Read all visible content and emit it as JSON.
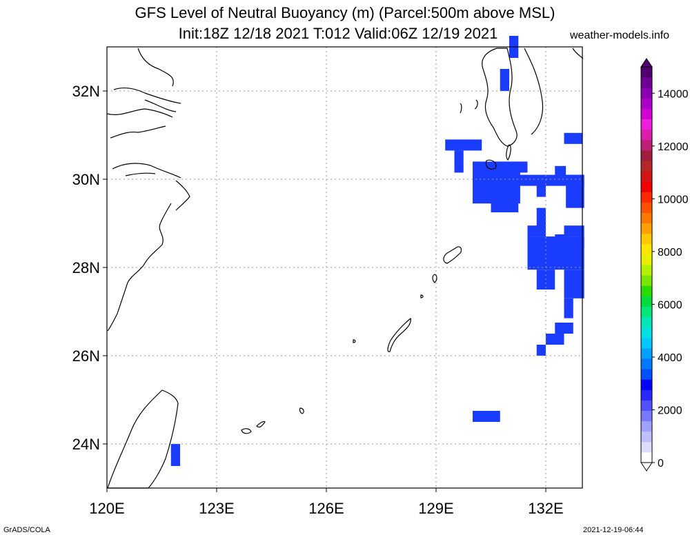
{
  "title": {
    "line1": "GFS Level of Neutral Buoyancy (m) (Parcel:500m above MSL)",
    "line2": "Init:18Z 12/18 2021 T:012 Valid:06Z 12/19 2021"
  },
  "site": "weather-models.info",
  "footer": {
    "left": "GrADS/COLA",
    "right": "2021-12-19-06:44"
  },
  "axes": {
    "lon_range": [
      120,
      133
    ],
    "lat_range": [
      23,
      33
    ],
    "x_ticks": [
      {
        "v": 120,
        "label": "120E"
      },
      {
        "v": 123,
        "label": "123E"
      },
      {
        "v": 126,
        "label": "126E"
      },
      {
        "v": 129,
        "label": "129E"
      },
      {
        "v": 132,
        "label": "132E"
      }
    ],
    "y_ticks": [
      {
        "v": 24,
        "label": "24N"
      },
      {
        "v": 26,
        "label": "26N"
      },
      {
        "v": 28,
        "label": "28N"
      },
      {
        "v": 30,
        "label": "30N"
      },
      {
        "v": 32,
        "label": "32N"
      }
    ],
    "grid": true
  },
  "colorbar": {
    "range": [
      0,
      15000
    ],
    "labels": [
      "0",
      "2000",
      "4000",
      "6000",
      "8000",
      "10000",
      "12000",
      "14000"
    ],
    "colors": [
      "#ffffff",
      "#dcdcff",
      "#c0c0ff",
      "#a0a0ff",
      "#7878ff",
      "#5050ff",
      "#2828ff",
      "#0000ff",
      "#0050ff",
      "#0078ff",
      "#00a0ff",
      "#00c8ff",
      "#00e0e0",
      "#00e6b4",
      "#00e678",
      "#00dc3c",
      "#28dc00",
      "#78e600",
      "#b4f000",
      "#e6f000",
      "#ffe600",
      "#ffc800",
      "#ffa000",
      "#ff7800",
      "#ff5000",
      "#ff2800",
      "#f00000",
      "#d21414",
      "#b42828",
      "#a01e3c",
      "#be1e78",
      "#dc1eaa",
      "#f01edc",
      "#d200d2",
      "#aa00c8",
      "#8c00b4",
      "#6e0096",
      "#50006e"
    ]
  },
  "buoyancy_color": "#1a3cff",
  "buoyancy_cells": [
    {
      "lon": 121.75,
      "lat": 23.5,
      "w": 0.25,
      "h": 0.5
    },
    {
      "lon": 131.0,
      "lat": 32.75,
      "w": 0.25,
      "h": 0.5
    },
    {
      "lon": 130.75,
      "lat": 32.0,
      "w": 0.25,
      "h": 0.5
    },
    {
      "lon": 129.25,
      "lat": 30.65,
      "w": 1.0,
      "h": 0.25
    },
    {
      "lon": 129.5,
      "lat": 30.15,
      "w": 0.25,
      "h": 0.5
    },
    {
      "lon": 130.0,
      "lat": 29.45,
      "w": 1.3,
      "h": 0.75
    },
    {
      "lon": 130.5,
      "lat": 29.25,
      "w": 0.75,
      "h": 0.25
    },
    {
      "lon": 130.0,
      "lat": 30.15,
      "w": 1.5,
      "h": 0.25
    },
    {
      "lon": 130.25,
      "lat": 29.85,
      "w": 2.8,
      "h": 0.25
    },
    {
      "lon": 131.75,
      "lat": 29.6,
      "w": 0.25,
      "h": 0.35
    },
    {
      "lon": 132.25,
      "lat": 30.0,
      "w": 0.3,
      "h": 0.3
    },
    {
      "lon": 132.55,
      "lat": 29.35,
      "w": 0.5,
      "h": 0.75
    },
    {
      "lon": 132.5,
      "lat": 30.8,
      "w": 0.5,
      "h": 0.25
    },
    {
      "lon": 131.5,
      "lat": 27.95,
      "w": 1.55,
      "h": 0.75
    },
    {
      "lon": 131.5,
      "lat": 28.7,
      "w": 0.5,
      "h": 0.25
    },
    {
      "lon": 131.5,
      "lat": 28.45,
      "w": 1.55,
      "h": 0.25
    },
    {
      "lon": 132.5,
      "lat": 28.7,
      "w": 0.55,
      "h": 0.25
    },
    {
      "lon": 132.25,
      "lat": 28.55,
      "w": 0.25,
      "h": 0.2
    },
    {
      "lon": 131.75,
      "lat": 28.85,
      "w": 0.25,
      "h": 0.5
    },
    {
      "lon": 131.75,
      "lat": 27.5,
      "w": 0.5,
      "h": 0.45
    },
    {
      "lon": 132.5,
      "lat": 27.3,
      "w": 0.55,
      "h": 0.65
    },
    {
      "lon": 132.5,
      "lat": 26.85,
      "w": 0.25,
      "h": 0.45
    },
    {
      "lon": 132.25,
      "lat": 26.5,
      "w": 0.5,
      "h": 0.25
    },
    {
      "lon": 132.0,
      "lat": 26.25,
      "w": 0.5,
      "h": 0.25
    },
    {
      "lon": 131.75,
      "lat": 26.0,
      "w": 0.25,
      "h": 0.25
    },
    {
      "lon": 130.0,
      "lat": 24.5,
      "w": 0.75,
      "h": 0.25
    }
  ]
}
